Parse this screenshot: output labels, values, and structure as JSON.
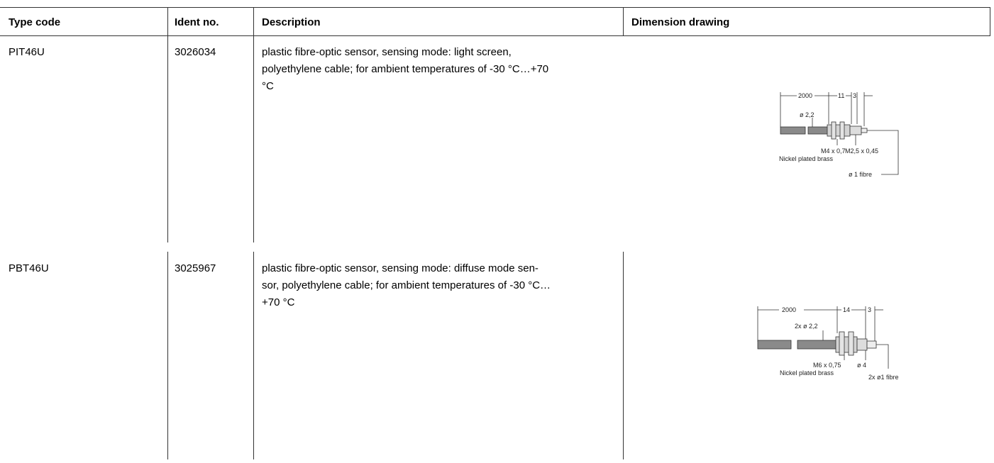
{
  "table": {
    "header": [
      "Type code",
      "Ident no.",
      "Description",
      "Dimension drawing"
    ],
    "rows": [
      {
        "type_code": "PIT46U",
        "ident_no": "3026034",
        "description": [
          "plastic fibre-optic sensor, sensing mode: light screen,",
          "polyethylene cable; for ambient temperatures of -30 °C…+70",
          "°C"
        ],
        "drawing": {
          "labels": [
            "2000",
            "11",
            "3",
            "ø 2,2",
            "M4 x 0,7",
            "M2,5 x 0,45",
            "Nickel plated brass",
            "ø 1 fibre"
          ]
        }
      },
      {
        "type_code": "PBT46U",
        "ident_no": "3025967",
        "description": [
          "plastic fibre-optic sensor, sensing mode: diffuse mode sen-",
          "sor, polyethylene cable; for ambient temperatures of -30 °C…",
          "+70 °C"
        ],
        "drawing": {
          "labels": [
            "2000",
            "14",
            "3",
            "2x ø 2,2",
            "M6 x 0,75",
            "ø 4",
            "Nickel plated brass",
            "2x ø1 fibre"
          ]
        }
      }
    ]
  }
}
